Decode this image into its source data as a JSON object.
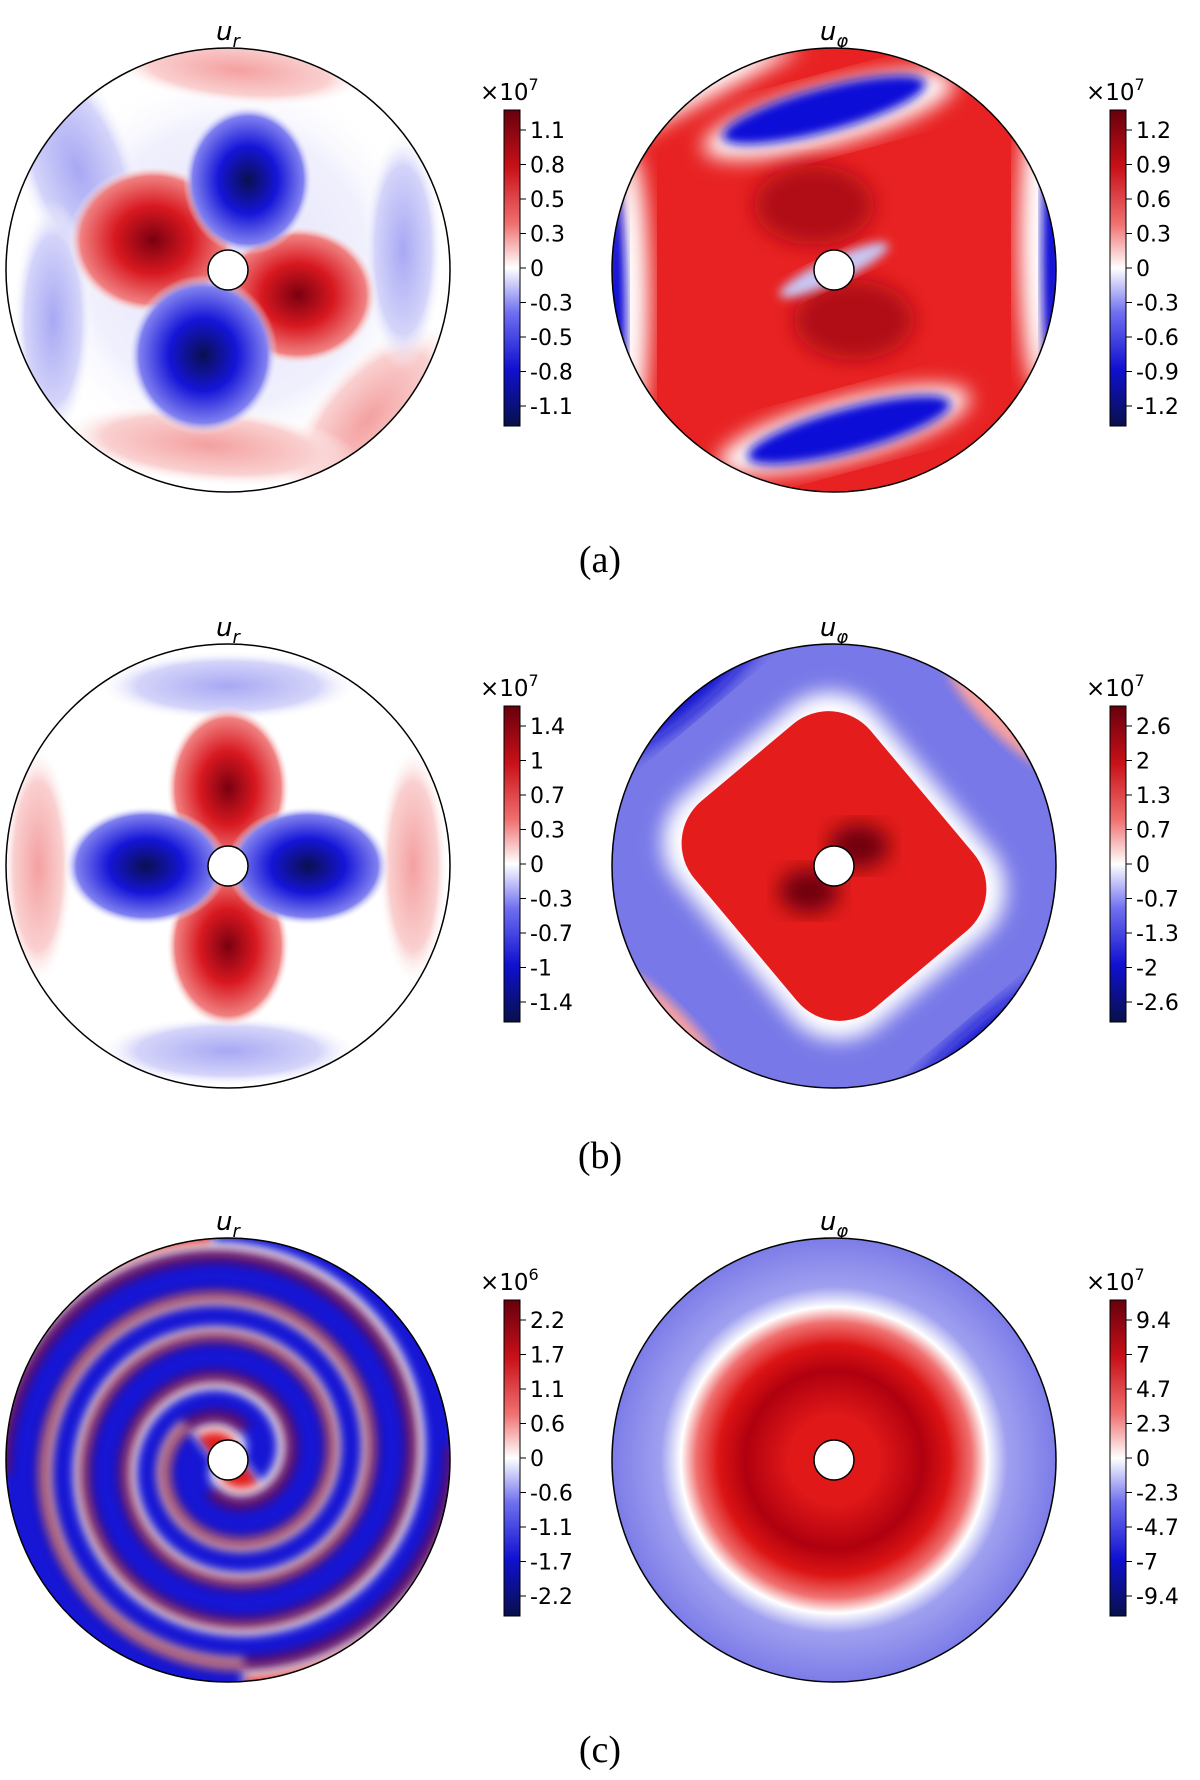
{
  "figure": {
    "rows": [
      {
        "caption": "(a)",
        "panels": [
          {
            "title": "u_r",
            "colorbar": {
              "exponent_label": "×10",
              "exponent": "7",
              "ticks": [
                "1.1",
                "0.8",
                "0.5",
                "0.3",
                "0",
                "-0.3",
                "-0.5",
                "-0.8",
                "-1.1"
              ]
            },
            "pattern": {
              "kind": "four-lobe",
              "description_of_field": "radial velocity"
            }
          },
          {
            "title": "u_φ",
            "colorbar": {
              "exponent_label": "×10",
              "exponent": "7",
              "ticks": [
                "1.2",
                "0.9",
                "0.6",
                "0.3",
                "0",
                "-0.3",
                "-0.6",
                "-0.9",
                "-1.2"
              ]
            },
            "pattern": {
              "kind": "rotated-square",
              "description_of_field": "azimuthal velocity"
            }
          }
        ]
      },
      {
        "caption": "(b)",
        "panels": [
          {
            "title": "u_r",
            "colorbar": {
              "exponent_label": "×10",
              "exponent": "7",
              "ticks": [
                "1.4",
                "1",
                "0.7",
                "0.3",
                "0",
                "-0.3",
                "-0.7",
                "-1",
                "-1.4"
              ]
            },
            "pattern": {
              "kind": "four-lobe-vertical",
              "description_of_field": "radial velocity"
            }
          },
          {
            "title": "u_φ",
            "colorbar": {
              "exponent_label": "×10",
              "exponent": "7",
              "ticks": [
                "2.6",
                "2",
                "1.3",
                "0.7",
                "0",
                "-0.7",
                "-1.3",
                "-2",
                "-2.6"
              ]
            },
            "pattern": {
              "kind": "rotated-square-b",
              "description_of_field": "azimuthal velocity"
            }
          }
        ]
      },
      {
        "caption": "(c)",
        "panels": [
          {
            "title": "u_r",
            "colorbar": {
              "exponent_label": "×10",
              "exponent": "6",
              "ticks": [
                "2.2",
                "1.7",
                "1.1",
                "0.6",
                "0",
                "-0.6",
                "-1.1",
                "-1.7",
                "-2.2"
              ]
            },
            "pattern": {
              "kind": "spiral",
              "description_of_field": "radial velocity"
            }
          },
          {
            "title": "u_φ",
            "colorbar": {
              "exponent_label": "×10",
              "exponent": "7",
              "ticks": [
                "9.4",
                "7",
                "4.7",
                "2.3",
                "0",
                "-2.3",
                "-4.7",
                "-7",
                "-9.4"
              ]
            },
            "pattern": {
              "kind": "ring",
              "description_of_field": "azimuthal velocity"
            }
          }
        ]
      }
    ],
    "colors": {
      "positive_max": "#67000d",
      "positive": "#e8151b",
      "neutral": "#ffffff",
      "negative": "#1010e0",
      "negative_max": "#08104a",
      "outline": "#000000"
    }
  }
}
